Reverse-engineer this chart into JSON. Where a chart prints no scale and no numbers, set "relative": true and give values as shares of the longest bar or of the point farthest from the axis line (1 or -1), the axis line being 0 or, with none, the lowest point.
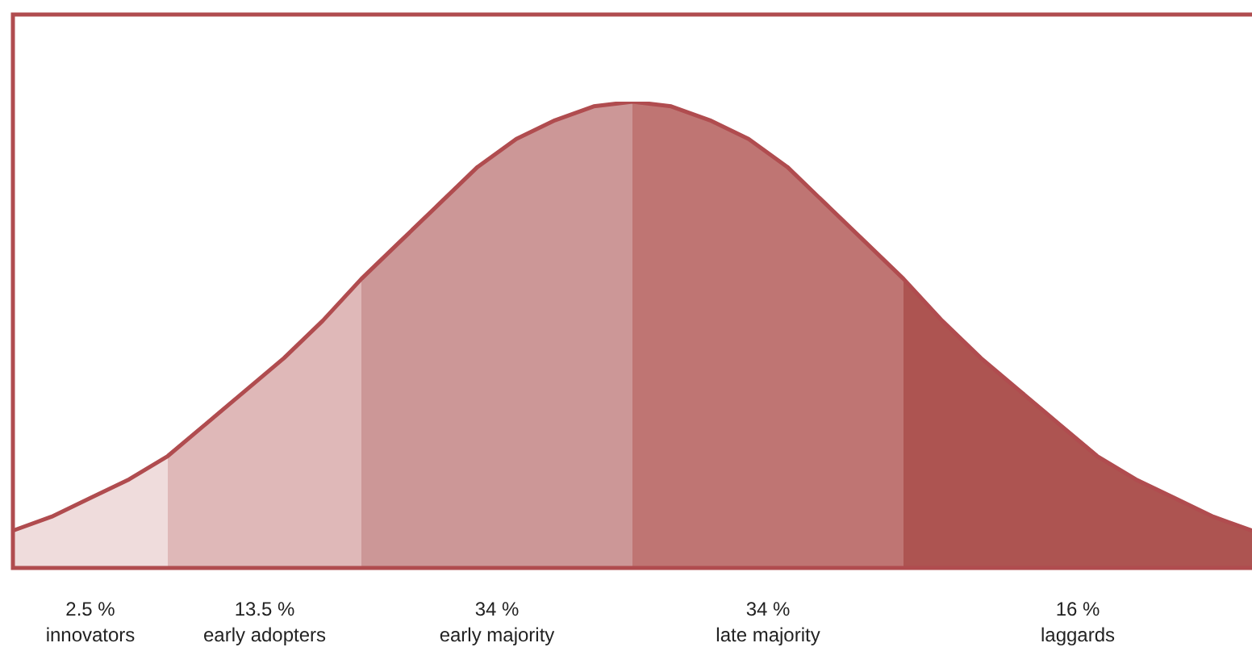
{
  "chart_data": {
    "type": "area",
    "relative": true,
    "categories": [
      null,
      null,
      null,
      null,
      null,
      null,
      null,
      null,
      null,
      null,
      null,
      null,
      null,
      null,
      null,
      null,
      null,
      null,
      null,
      null,
      null,
      null,
      null,
      null,
      null,
      null,
      null,
      null,
      null,
      null,
      null,
      null,
      null
    ],
    "series": [
      {
        "name": "innovators",
        "color": "#efdcdc",
        "values": [
          0.08,
          0.11,
          0.15,
          0.19,
          0.24,
          null,
          null,
          null,
          null,
          null,
          null,
          null,
          null,
          null,
          null,
          null,
          null,
          null,
          null,
          null,
          null,
          null,
          null,
          null,
          null,
          null,
          null,
          null,
          null,
          null,
          null,
          null,
          null
        ]
      },
      {
        "name": "early adopters",
        "color": "#dfb8b8",
        "values": [
          null,
          null,
          null,
          null,
          0.24,
          0.31,
          0.38,
          0.45,
          0.53,
          0.62,
          null,
          null,
          null,
          null,
          null,
          null,
          null,
          null,
          null,
          null,
          null,
          null,
          null,
          null,
          null,
          null,
          null,
          null,
          null,
          null,
          null,
          null,
          null
        ]
      },
      {
        "name": "early majority",
        "color": "#cc9797",
        "values": [
          null,
          null,
          null,
          null,
          null,
          null,
          null,
          null,
          null,
          0.62,
          0.7,
          0.78,
          0.86,
          0.92,
          0.96,
          0.99,
          1,
          null,
          null,
          null,
          null,
          null,
          null,
          null,
          null,
          null,
          null,
          null,
          null,
          null,
          null,
          null,
          null
        ]
      },
      {
        "name": "late majority",
        "color": "#bf7573",
        "values": [
          null,
          null,
          null,
          null,
          null,
          null,
          null,
          null,
          null,
          null,
          null,
          null,
          null,
          null,
          null,
          null,
          1,
          0.99,
          0.96,
          0.92,
          0.86,
          0.78,
          0.7,
          0.62,
          null,
          null,
          null,
          null,
          null,
          null,
          null,
          null,
          null
        ]
      },
      {
        "name": "laggards",
        "color": "#ad5451",
        "values": [
          null,
          null,
          null,
          null,
          null,
          null,
          null,
          null,
          null,
          null,
          null,
          null,
          null,
          null,
          null,
          null,
          null,
          null,
          null,
          null,
          null,
          null,
          null,
          0.62,
          0.53,
          0.45,
          0.38,
          0.31,
          0.24,
          0.19,
          0.15,
          0.11,
          0.08
        ]
      },
      {
        "type": "line",
        "color": "#b04c4f",
        "values": [
          0.08,
          0.11,
          0.15,
          0.19,
          0.24,
          0.31,
          0.38,
          0.45,
          0.53,
          0.62,
          0.7,
          0.78,
          0.86,
          0.92,
          0.96,
          0.99,
          1,
          0.99,
          0.96,
          0.92,
          0.86,
          0.78,
          0.7,
          0.62,
          0.53,
          0.45,
          0.38,
          0.31,
          0.24,
          0.19,
          0.15,
          0.11,
          0.08
        ]
      }
    ],
    "annotations": [
      "2.5 %",
      "13.5 %",
      "34 %",
      "34 %",
      "16 %"
    ]
  }
}
